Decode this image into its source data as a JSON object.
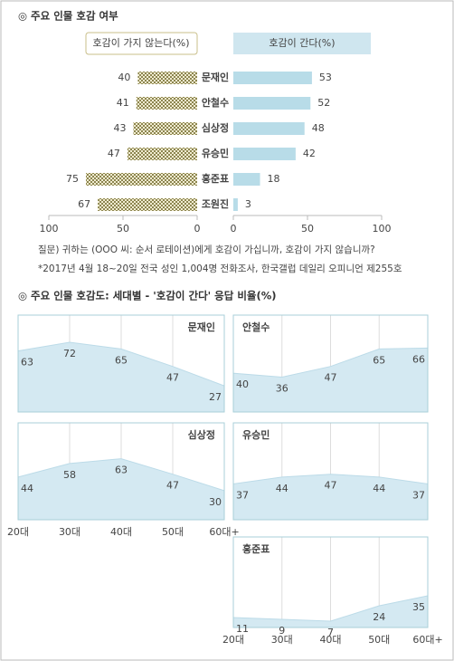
{
  "chart_data": [
    {
      "type": "butterfly",
      "title": "◎  주요 인물 호감 여부",
      "categories": [
        "문재인",
        "안철수",
        "심상정",
        "유승민",
        "홍준표",
        "조원진"
      ],
      "series": [
        {
          "name": "호감이 가지 않는다(%)",
          "color": "#a39a5a",
          "values": [
            40,
            41,
            43,
            47,
            75,
            67
          ]
        },
        {
          "name": "호감이 간다(%)",
          "color": "#b8dce8",
          "values": [
            53,
            52,
            48,
            42,
            18,
            3
          ]
        }
      ],
      "xlim": [
        0,
        100
      ],
      "left_xticks": [
        100,
        50,
        0
      ],
      "right_xticks": [
        0,
        50,
        100
      ],
      "question": "질문) 귀하는 (OOO 씨: 순서 로테이션)에게 호감이 가십니까, 호감이 가지 않습니까?",
      "note": "*2017년 4월 18~20일 전국 성인 1,004명 전화조사, 한국갤럽 데일리 오피니언 제255호"
    },
    {
      "type": "area",
      "title": "◎  주요 인물 호감도: 세대별 - '호감이 간다' 응답 비율(%)",
      "categories": [
        "20대",
        "30대",
        "40대",
        "50대",
        "60대+"
      ],
      "ylim": [
        0,
        100
      ],
      "color": "#d4e9f2",
      "series": [
        {
          "name": "문재인",
          "values": [
            63,
            72,
            65,
            47,
            27
          ]
        },
        {
          "name": "안철수",
          "values": [
            40,
            36,
            47,
            65,
            66
          ]
        },
        {
          "name": "심상정",
          "values": [
            44,
            58,
            63,
            47,
            30
          ]
        },
        {
          "name": "유승민",
          "values": [
            37,
            44,
            47,
            44,
            37
          ]
        },
        {
          "name": "홍준표",
          "values": [
            11,
            9,
            7,
            24,
            35
          ]
        }
      ]
    }
  ]
}
